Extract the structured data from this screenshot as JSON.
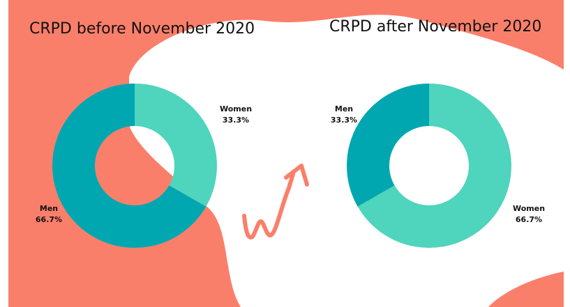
{
  "chart_data": [
    {
      "type": "pie",
      "title": "CRPD before November 2020",
      "categories": [
        "Women",
        "Men"
      ],
      "values": [
        33.3,
        66.7
      ],
      "value_labels": [
        "33.3%",
        "66.7%"
      ],
      "colors": [
        "#4fd4bd",
        "#00a7b1"
      ]
    },
    {
      "type": "pie",
      "title": "CRPD after November 2020",
      "categories": [
        "Women",
        "Men"
      ],
      "values": [
        66.7,
        33.3
      ],
      "value_labels": [
        "66.7%",
        "33.3%"
      ],
      "colors": [
        "#4fd4bd",
        "#00a7b1"
      ]
    }
  ]
}
